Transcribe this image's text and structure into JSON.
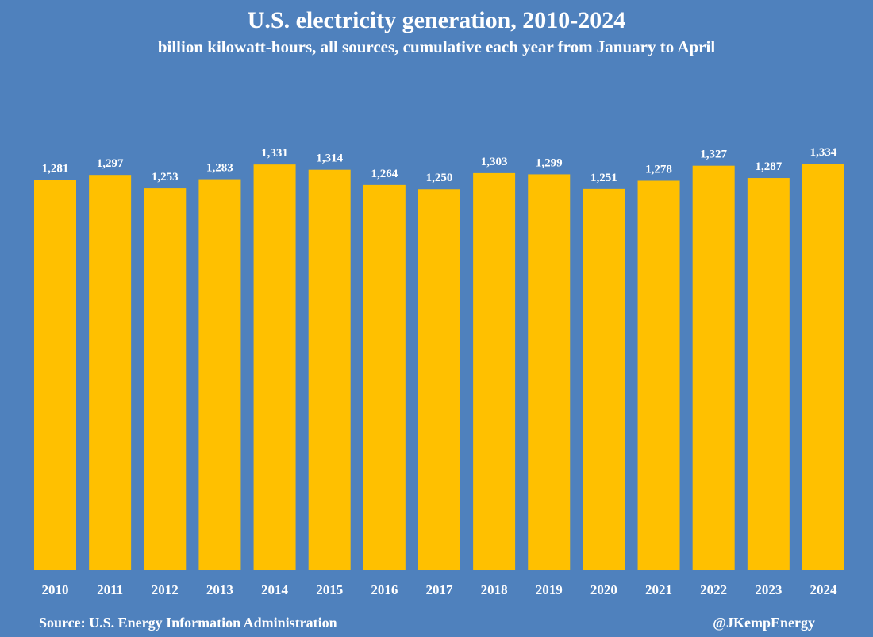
{
  "chart_data": {
    "type": "bar",
    "title": "U.S. electricity generation, 2010-2024",
    "subtitle": "billion kilowatt-hours, all sources, cumulative each year from January to April",
    "xlabel": "",
    "ylabel": "",
    "ylim": [
      0,
      1334
    ],
    "grid": false,
    "legend": "none",
    "categories": [
      "2010",
      "2011",
      "2012",
      "2013",
      "2014",
      "2015",
      "2016",
      "2017",
      "2018",
      "2019",
      "2020",
      "2021",
      "2022",
      "2023",
      "2024"
    ],
    "values": [
      1281,
      1297,
      1253,
      1283,
      1331,
      1314,
      1264,
      1250,
      1303,
      1299,
      1251,
      1278,
      1327,
      1287,
      1334
    ],
    "value_labels": [
      "1,281",
      "1,297",
      "1,253",
      "1,283",
      "1,331",
      "1,314",
      "1,264",
      "1,250",
      "1,303",
      "1,299",
      "1,251",
      "1,278",
      "1,327",
      "1,287",
      "1,334"
    ],
    "bar_color": "#ffc000",
    "background_color": "#4f81bd",
    "text_color": "#ffffff"
  },
  "footer": {
    "source": "Source: U.S. Energy Information Administration",
    "handle": "@JKempEnergy"
  }
}
